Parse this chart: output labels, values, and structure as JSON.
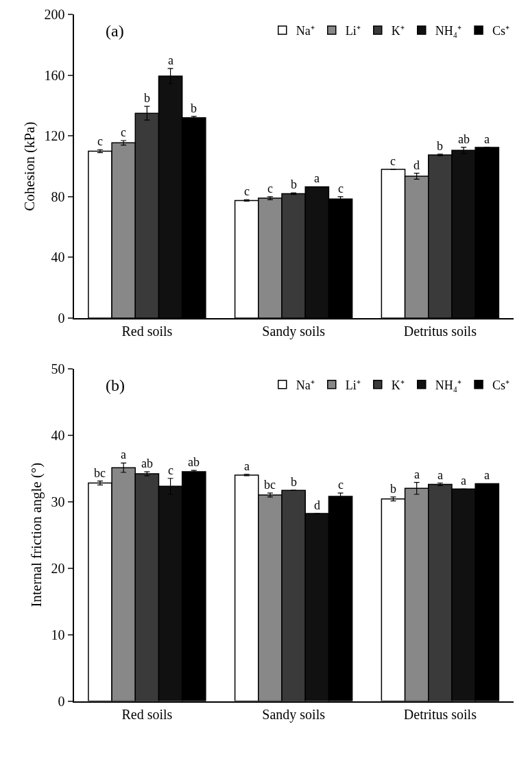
{
  "chart_data": [
    {
      "type": "bar",
      "title": "(a)",
      "ylabel": "Cohesion (kPa)",
      "categories": [
        "Red soils",
        "Sandy soils",
        "Detritus soils"
      ],
      "ylim": [
        0,
        200
      ],
      "yticks": [
        0,
        40,
        80,
        120,
        160,
        200
      ],
      "legend": "top right",
      "series": [
        {
          "name": "Na⁺",
          "color": "#ffffff",
          "values": [
            110,
            77.5,
            98
          ],
          "errors": [
            1,
            0.5,
            null
          ],
          "value_labels": [
            "c",
            "c",
            "c"
          ]
        },
        {
          "name": "Li⁺",
          "color": "#888888",
          "values": [
            115.5,
            79,
            93.5
          ],
          "errors": [
            1.5,
            1,
            2
          ],
          "value_labels": [
            "c",
            "c",
            "d"
          ]
        },
        {
          "name": "K⁺",
          "color": "#3a3a3a",
          "values": [
            135,
            82,
            107.5
          ],
          "errors": [
            4.5,
            0.5,
            0.5
          ],
          "value_labels": [
            "b",
            "b",
            "b"
          ]
        },
        {
          "name": "NH₄⁺",
          "color": "#111111",
          "values": [
            159.5,
            86.5,
            110.5
          ],
          "errors": [
            5,
            null,
            2
          ],
          "value_labels": [
            "a",
            "a",
            "ab"
          ]
        },
        {
          "name": "Cs⁺",
          "color": "#000000",
          "values": [
            132,
            78.5,
            112.5
          ],
          "errors": [
            1,
            1.5,
            null
          ],
          "value_labels": [
            "b",
            "c",
            "a"
          ]
        }
      ]
    },
    {
      "type": "bar",
      "title": "(b)",
      "ylabel": "Internal friction angle (°)",
      "categories": [
        "Red soils",
        "Sandy soils",
        "Detritus soils"
      ],
      "ylim": [
        0,
        50
      ],
      "yticks": [
        0,
        10,
        20,
        30,
        40,
        50
      ],
      "legend": "top right",
      "series": [
        {
          "name": "Na⁺",
          "color": "#ffffff",
          "values": [
            32.8,
            34,
            30.4
          ],
          "errors": [
            0.3,
            0.1,
            0.3
          ],
          "value_labels": [
            "bc",
            "a",
            "b"
          ]
        },
        {
          "name": "Li⁺",
          "color": "#888888",
          "values": [
            35.1,
            31,
            32
          ],
          "errors": [
            0.7,
            0.3,
            0.9
          ],
          "value_labels": [
            "a",
            "bc",
            "a"
          ]
        },
        {
          "name": "K⁺",
          "color": "#3a3a3a",
          "values": [
            34.2,
            31.7,
            32.6
          ],
          "errors": [
            0.3,
            null,
            0.2
          ],
          "value_labels": [
            "ab",
            "b",
            "a"
          ]
        },
        {
          "name": "NH₄⁺",
          "color": "#111111",
          "values": [
            32.3,
            28.2,
            31.9
          ],
          "errors": [
            1.2,
            null,
            null
          ],
          "value_labels": [
            "c",
            "d",
            "a"
          ]
        },
        {
          "name": "Cs⁺",
          "color": "#000000",
          "values": [
            34.5,
            30.8,
            32.7
          ],
          "errors": [
            0.2,
            0.5,
            null
          ],
          "value_labels": [
            "ab",
            "c",
            "a"
          ]
        }
      ]
    }
  ]
}
